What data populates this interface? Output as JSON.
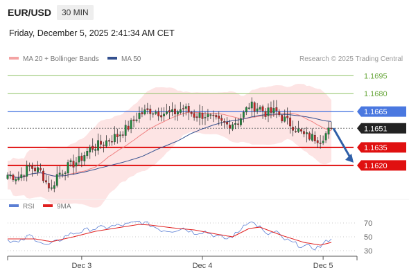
{
  "header": {
    "symbol": "EUR/USD",
    "timeframe": "30 MIN",
    "timestamp": "Friday, December 5, 2025 2:41:34 AM CET",
    "credit": "Research © 2025 Trading Central"
  },
  "legend": {
    "main": [
      {
        "label": "MA 20 + Bollinger Bands",
        "color": "#f4a3a3"
      },
      {
        "label": "MA 50",
        "color": "#34508f"
      }
    ],
    "rsi": [
      {
        "label": "RSI",
        "color": "#5b7fd4"
      },
      {
        "label": "9MA",
        "color": "#e02020"
      }
    ]
  },
  "colors": {
    "up": "#1a8a3a",
    "down": "#cc2222",
    "resistance": "#8cc063",
    "pivot": "#4a78e0",
    "support": "#e01010",
    "last": "#222222",
    "arrow": "#2f5fa8",
    "band": "#fde4e4"
  },
  "chart_data": [
    {
      "type": "candlestick",
      "ylim": [
        1.1595,
        1.1705
      ],
      "x_ticks": [
        "Dec 3",
        "Dec 4",
        "Dec 5"
      ],
      "levels": [
        {
          "value": 1.1695,
          "label": "1.1695",
          "kind": "resistance"
        },
        {
          "value": 1.168,
          "label": "1.1680",
          "kind": "resistance"
        },
        {
          "value": 1.1665,
          "label": "1.1665",
          "kind": "pivot"
        },
        {
          "value": 1.1651,
          "label": "1.1651",
          "kind": "last"
        },
        {
          "value": 1.1635,
          "label": "1.1635",
          "kind": "support"
        },
        {
          "value": 1.162,
          "label": "1.1620",
          "kind": "support"
        }
      ],
      "anchors": [
        [
          0,
          1.1612
        ],
        [
          4,
          1.161
        ],
        [
          8,
          1.1619
        ],
        [
          12,
          1.1615
        ],
        [
          14,
          1.1606
        ],
        [
          16,
          1.16
        ],
        [
          18,
          1.1612
        ],
        [
          22,
          1.1619
        ],
        [
          26,
          1.1624
        ],
        [
          30,
          1.1634
        ],
        [
          34,
          1.1638
        ],
        [
          40,
          1.1645
        ],
        [
          44,
          1.1652
        ],
        [
          48,
          1.1663
        ],
        [
          52,
          1.1666
        ],
        [
          56,
          1.1664
        ],
        [
          60,
          1.1663
        ],
        [
          64,
          1.1668
        ],
        [
          68,
          1.1662
        ],
        [
          72,
          1.1662
        ],
        [
          76,
          1.1657
        ],
        [
          80,
          1.1654
        ],
        [
          84,
          1.1657
        ],
        [
          86,
          1.1663
        ],
        [
          88,
          1.167
        ],
        [
          92,
          1.1668
        ],
        [
          94,
          1.1664
        ],
        [
          98,
          1.1665
        ],
        [
          100,
          1.166
        ],
        [
          104,
          1.1653
        ],
        [
          108,
          1.1645
        ],
        [
          112,
          1.1643
        ],
        [
          114,
          1.1642
        ],
        [
          118,
          1.1651
        ]
      ],
      "forecast": {
        "from": 1.1651,
        "to": 1.162
      }
    },
    {
      "type": "line",
      "title": "RSI",
      "ylim": [
        25,
        80
      ],
      "y_ticks": [
        30,
        50,
        70
      ],
      "series": [
        {
          "name": "RSI",
          "anchors": [
            [
              0,
              46
            ],
            [
              4,
              41
            ],
            [
              8,
              52
            ],
            [
              12,
              43
            ],
            [
              14,
              37
            ],
            [
              18,
              43
            ],
            [
              22,
              53
            ],
            [
              26,
              57
            ],
            [
              30,
              61
            ],
            [
              34,
              63
            ],
            [
              40,
              66
            ],
            [
              44,
              68
            ],
            [
              48,
              72
            ],
            [
              52,
              67
            ],
            [
              56,
              60
            ],
            [
              60,
              59
            ],
            [
              64,
              63
            ],
            [
              68,
              56
            ],
            [
              72,
              58
            ],
            [
              76,
              51
            ],
            [
              80,
              47
            ],
            [
              84,
              56
            ],
            [
              86,
              67
            ],
            [
              88,
              73
            ],
            [
              92,
              64
            ],
            [
              94,
              53
            ],
            [
              98,
              57
            ],
            [
              100,
              48
            ],
            [
              104,
              41
            ],
            [
              108,
              36
            ],
            [
              112,
              34
            ],
            [
              114,
              36
            ],
            [
              118,
              49
            ]
          ]
        },
        {
          "name": "9MA",
          "anchors": [
            [
              0,
              47
            ],
            [
              10,
              47
            ],
            [
              16,
              43
            ],
            [
              24,
              50
            ],
            [
              32,
              58
            ],
            [
              40,
              63
            ],
            [
              48,
              68
            ],
            [
              52,
              67
            ],
            [
              60,
              63
            ],
            [
              68,
              60
            ],
            [
              76,
              54
            ],
            [
              82,
              50
            ],
            [
              88,
              62
            ],
            [
              92,
              64
            ],
            [
              100,
              52
            ],
            [
              108,
              42
            ],
            [
              114,
              38
            ],
            [
              118,
              42
            ]
          ]
        }
      ]
    }
  ]
}
